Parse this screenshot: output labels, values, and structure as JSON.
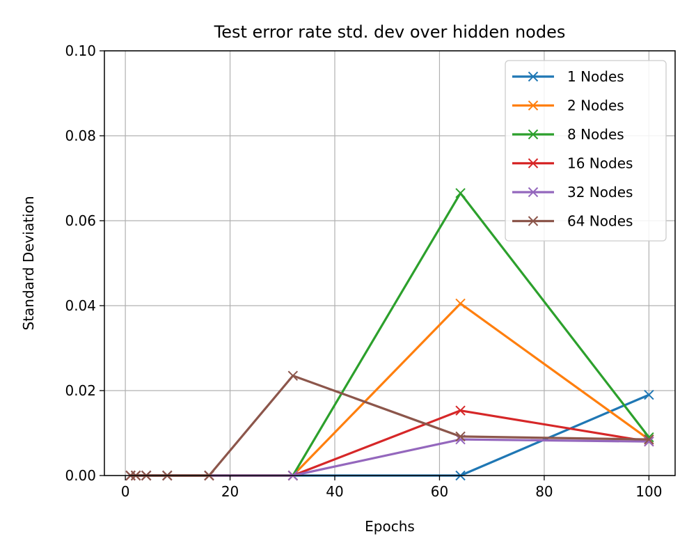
{
  "chart_data": {
    "type": "line",
    "title": "Test error rate std. dev over hidden nodes",
    "xlabel": "Epochs",
    "ylabel": "Standard Deviation",
    "xlim": [
      -4,
      105
    ],
    "ylim": [
      0,
      0.1
    ],
    "xticks": [
      0,
      20,
      40,
      60,
      80,
      100
    ],
    "yticks": [
      0.0,
      0.02,
      0.04,
      0.06,
      0.08,
      0.1
    ],
    "xtick_labels": [
      "0",
      "20",
      "40",
      "60",
      "80",
      "100"
    ],
    "ytick_labels": [
      "0.00",
      "0.02",
      "0.04",
      "0.06",
      "0.08",
      "0.10"
    ],
    "grid": true,
    "legend_position": "top-right",
    "x": [
      1,
      2,
      4,
      8,
      16,
      32,
      64,
      100
    ],
    "series": [
      {
        "name": "1 Nodes",
        "color": "#1f77b4",
        "values": [
          0,
          0,
          0,
          0,
          0,
          0,
          0,
          0.019
        ]
      },
      {
        "name": "2 Nodes",
        "color": "#ff7f0e",
        "values": [
          0,
          0,
          0,
          0,
          0,
          0,
          0.0405,
          0.0085
        ]
      },
      {
        "name": "8 Nodes",
        "color": "#2ca02c",
        "values": [
          0,
          0,
          0,
          0,
          0,
          0,
          0.0665,
          0.009
        ]
      },
      {
        "name": "16 Nodes",
        "color": "#d62728",
        "values": [
          0,
          0,
          0,
          0,
          0,
          0,
          0.0153,
          0.008
        ]
      },
      {
        "name": "32 Nodes",
        "color": "#9467bd",
        "values": [
          0,
          0,
          0,
          0,
          0,
          0,
          0.0085,
          0.008
        ]
      },
      {
        "name": "64 Nodes",
        "color": "#8c564b",
        "values": [
          0,
          0,
          0,
          0,
          0,
          0.0235,
          0.0092,
          0.0085
        ]
      }
    ]
  }
}
